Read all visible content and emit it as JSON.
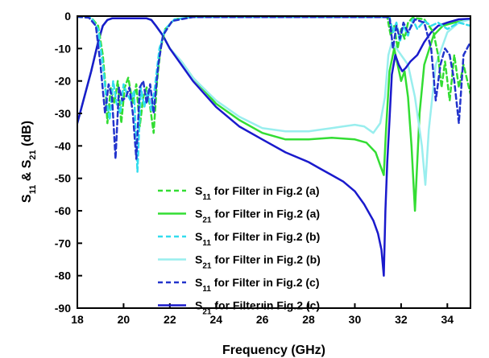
{
  "chart_data": {
    "type": "line",
    "xlabel": "Frequency (GHz)",
    "ylabel": "S11 & S21 (dB)",
    "ylabel_parts": {
      "a": "S",
      "sub1": "11",
      "mid": " & S",
      "sub2": "21",
      "unit": " (dB)"
    },
    "xlim": [
      18,
      35
    ],
    "ylim": [
      -90,
      0
    ],
    "xticks": [
      18,
      20,
      22,
      24,
      26,
      28,
      30,
      32,
      34
    ],
    "yticks": [
      0,
      -10,
      -20,
      -30,
      -40,
      -50,
      -60,
      -70,
      -80,
      -90
    ],
    "grid": false,
    "legend_position": "lower-left",
    "series": [
      {
        "name": "S11 for Filter in Fig.2 (a)",
        "param": "S",
        "sub": "11",
        "rest": " for Filter in Fig.2 (a)",
        "color": "#33dd33",
        "dash": true,
        "x": [
          18,
          18.6,
          18.9,
          19.1,
          19.2,
          19.3,
          19.45,
          19.6,
          19.75,
          19.9,
          20.05,
          20.2,
          20.4,
          20.55,
          20.7,
          20.85,
          21.0,
          21.15,
          21.3,
          21.45,
          21.6,
          21.8,
          22.2,
          23,
          31.4,
          31.55,
          31.7,
          31.85,
          32.0,
          32.15,
          32.3,
          32.5,
          33,
          33.4,
          33.6,
          33.75,
          33.9,
          34.1,
          34.3,
          34.5,
          34.7,
          35
        ],
        "y": [
          -0.2,
          -0.5,
          -3,
          -12,
          -20,
          -33,
          -22,
          -27,
          -20,
          -33,
          -22,
          -19,
          -27,
          -21,
          -34,
          -25,
          -22,
          -28,
          -36,
          -20,
          -10,
          -4,
          -1,
          -0.3,
          -0.3,
          -6,
          -3,
          -10,
          -4,
          -7,
          -2,
          -0.5,
          -1,
          -5,
          -12,
          -22,
          -14,
          -26,
          -12,
          -22,
          -15,
          -24
        ]
      },
      {
        "name": "S21 for Filter in Fig.2 (a)",
        "param": "S",
        "sub": "21",
        "rest": " for Filter in Fig.2 (a)",
        "color": "#33dd33",
        "dash": false,
        "x": [
          18,
          18.3,
          18.6,
          18.9,
          19.1,
          19.3,
          19.5,
          21.0,
          21.2,
          21.4,
          21.7,
          22,
          22.5,
          23,
          24,
          25,
          26,
          27,
          28,
          29,
          30,
          30.5,
          30.9,
          31.1,
          31.25,
          31.35,
          31.5,
          31.7,
          31.85,
          32.0,
          32.15,
          32.3,
          32.45,
          32.6,
          32.8,
          33.0,
          33.4,
          33.8,
          34.3,
          35
        ],
        "y": [
          -33,
          -25,
          -17,
          -8,
          -3,
          -1.2,
          -0.7,
          -0.7,
          -1.2,
          -3,
          -6,
          -10,
          -14,
          -19,
          -27,
          -32,
          -36,
          -38,
          -38,
          -37.5,
          -38,
          -39,
          -42,
          -46,
          -49,
          -35,
          -17,
          -10,
          -15,
          -20,
          -17,
          -25,
          -40,
          -60,
          -30,
          -15,
          -6,
          -3,
          -2,
          -1
        ]
      },
      {
        "name": "S11 for Filter in Fig.2 (b)",
        "param": "S",
        "sub": "11",
        "rest": " for Filter in Fig.2 (b)",
        "color": "#33ddee",
        "dash": true,
        "x": [
          18,
          18.6,
          18.9,
          19.1,
          19.25,
          19.4,
          19.55,
          19.7,
          19.85,
          20.0,
          20.15,
          20.3,
          20.45,
          20.6,
          20.75,
          20.9,
          21.05,
          21.2,
          21.35,
          21.55,
          21.8,
          22.2,
          23,
          31.5,
          31.65,
          31.8,
          31.95,
          32.1,
          32.3,
          32.5,
          32.7,
          33,
          33.3,
          33.6,
          34,
          34.5,
          35
        ],
        "y": [
          -0.2,
          -0.5,
          -4,
          -15,
          -25,
          -32,
          -20,
          -27,
          -30,
          -21,
          -24,
          -26,
          -23,
          -48,
          -22,
          -28,
          -23,
          -29,
          -22,
          -10,
          -4,
          -1,
          -0.3,
          -0.3,
          -5,
          -2,
          -8,
          -3,
          -6,
          -1,
          -4,
          -1.5,
          -3,
          -2,
          -4,
          -2,
          -3
        ]
      },
      {
        "name": "S21 for Filter in Fig.2 (b)",
        "param": "S",
        "sub": "21",
        "rest": " for Filter in Fig.2 (b)",
        "color": "#99eeee",
        "dash": false,
        "x": [
          18,
          18.3,
          18.6,
          18.9,
          19.1,
          19.3,
          19.5,
          21.0,
          21.2,
          21.4,
          21.7,
          22,
          22.5,
          23,
          24,
          25,
          26,
          27,
          28,
          29,
          29.5,
          30,
          30.4,
          30.8,
          31.1,
          31.3,
          31.45,
          31.6,
          31.8,
          32.0,
          32.3,
          32.6,
          32.9,
          33.05,
          33.2,
          33.5,
          34,
          34.5,
          35
        ],
        "y": [
          -33,
          -25,
          -17,
          -8,
          -3,
          -1.2,
          -0.7,
          -0.7,
          -1.2,
          -3,
          -6,
          -10,
          -14,
          -19,
          -26,
          -31,
          -34.5,
          -35.5,
          -35.5,
          -34.5,
          -34,
          -33.5,
          -34,
          -36,
          -33,
          -25,
          -12,
          -8,
          -10,
          -12,
          -15,
          -25,
          -40,
          -52,
          -35,
          -15,
          -5,
          -2,
          -1
        ]
      },
      {
        "name": "S11 for Filter in Fig.2 (c)",
        "param": "S",
        "sub": "11",
        "rest": " for Filter in Fig.2 (c)",
        "color": "#2233cc",
        "dash": true,
        "x": [
          18,
          18.5,
          18.8,
          19.0,
          19.2,
          19.35,
          19.5,
          19.65,
          19.8,
          19.95,
          20.1,
          20.25,
          20.4,
          20.55,
          20.7,
          20.85,
          21.0,
          21.15,
          21.3,
          21.5,
          21.7,
          22.1,
          23,
          31.5,
          31.65,
          31.8,
          31.95,
          32.1,
          32.3,
          32.6,
          33,
          33.3,
          33.5,
          33.7,
          33.9,
          34.1,
          34.3,
          34.5,
          34.7,
          35
        ],
        "y": [
          -0.2,
          -0.5,
          -3,
          -15,
          -30,
          -21,
          -25,
          -44,
          -22,
          -26,
          -25,
          -22,
          -30,
          -44,
          -22,
          -20,
          -27,
          -21,
          -30,
          -15,
          -6,
          -1.5,
          -0.3,
          -0.3,
          -10,
          -3,
          -7,
          -2,
          -5,
          -1,
          -2,
          -10,
          -26,
          -15,
          -10,
          -12,
          -20,
          -33,
          -12,
          -8
        ]
      },
      {
        "name": "S21 for Filter in Fig.2 (c)",
        "param": "S",
        "sub": "21",
        "rest": " for Filter in Fig.2 (c)",
        "color": "#1a1acc",
        "dash": false,
        "x": [
          18,
          18.3,
          18.6,
          18.9,
          19.1,
          19.3,
          19.5,
          21.0,
          21.2,
          21.4,
          21.7,
          22,
          22.5,
          23,
          24,
          25,
          26,
          27,
          28,
          28.5,
          29,
          29.5,
          30,
          30.4,
          30.8,
          31.0,
          31.15,
          31.25,
          31.32,
          31.4,
          31.5,
          31.6,
          31.75,
          31.9,
          32.05,
          32.2,
          32.4,
          32.7,
          33,
          33.3,
          33.6,
          34,
          34.5,
          35
        ],
        "y": [
          -33,
          -25,
          -17,
          -8,
          -3,
          -1.2,
          -0.7,
          -0.7,
          -1.2,
          -3,
          -6,
          -10,
          -15,
          -20,
          -28,
          -34,
          -38,
          -42,
          -45,
          -47,
          -49,
          -51,
          -54,
          -58,
          -63,
          -67,
          -72,
          -80,
          -60,
          -45,
          -32,
          -18,
          -12,
          -15,
          -17,
          -16,
          -14,
          -12,
          -8,
          -5,
          -3,
          -2,
          -1,
          -0.8
        ]
      }
    ]
  }
}
